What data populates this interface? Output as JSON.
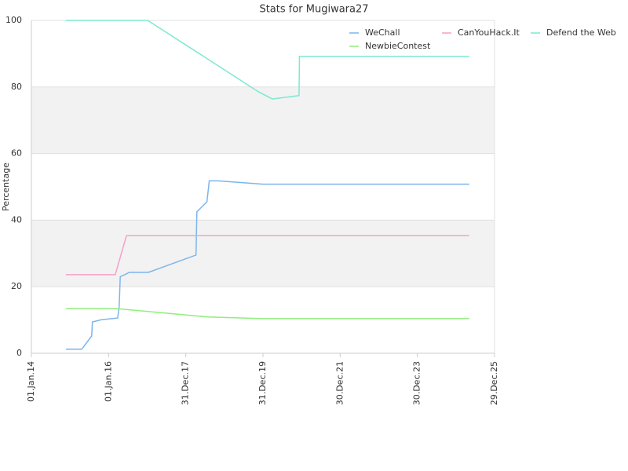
{
  "chart_data": {
    "type": "line",
    "title": "Stats for Mugiwara27",
    "y_label": "Percentage",
    "xlim": [
      "2014-01-01",
      "2025-12-29"
    ],
    "xticks": [
      {
        "value": "2014-01-01",
        "label": "01.Jan.14"
      },
      {
        "value": "2016-01-01",
        "label": "01.Jan.16"
      },
      {
        "value": "2017-12-31",
        "label": "31.Dec.17"
      },
      {
        "value": "2019-12-31",
        "label": "31.Dec.19"
      },
      {
        "value": "2021-12-30",
        "label": "30.Dec.21"
      },
      {
        "value": "2023-12-30",
        "label": "30.Dec.23"
      },
      {
        "value": "2025-12-29",
        "label": "29.Dec.25"
      }
    ],
    "ylim": [
      0,
      100
    ],
    "yticks": [
      0,
      20,
      40,
      60,
      80,
      100
    ],
    "grid": true,
    "legend": "top-right",
    "series": [
      {
        "name": "WeChall",
        "color": "#7cb5ec",
        "x": [
          "2014-11-23",
          "2015-04-22",
          "2015-07-25",
          "2015-08-01",
          "2015-10-30",
          "2016-03-27",
          "2016-04-10",
          "2016-04-20",
          "2016-06-01",
          "2016-07-15",
          "2017-01-11",
          "2018-04-07",
          "2018-04-15",
          "2018-07-19",
          "2018-08-10",
          "2018-11-01",
          "2019-12-31",
          "2025-05-03"
        ],
        "values": [
          1.2,
          1.2,
          5.2,
          9.4,
          10.1,
          10.6,
          14,
          23,
          23.6,
          24.3,
          24.3,
          29.5,
          42.5,
          45.5,
          51.8,
          51.8,
          50.8,
          50.8
        ]
      },
      {
        "name": "CanYouHack.It",
        "color": "#f4a0c8",
        "x": [
          "2014-11-23",
          "2016-03-04",
          "2016-06-18",
          "2025-05-03"
        ],
        "values": [
          23.6,
          23.6,
          35.3,
          35.3
        ]
      },
      {
        "name": "Defend the Web",
        "color": "#7ee8d0",
        "x": [
          "2014-11-23",
          "2017-01-05",
          "2019-11-22",
          "2020-03-29",
          "2020-12-06",
          "2020-12-10",
          "2025-05-03"
        ],
        "values": [
          100,
          100,
          78.5,
          76.4,
          77.4,
          89.2,
          89.2
        ]
      },
      {
        "name": "NewbieContest",
        "color": "#90ed7d",
        "x": [
          "2014-11-23",
          "2016-03-27",
          "2018-07-27",
          "2019-12-31",
          "2025-05-03"
        ],
        "values": [
          13.4,
          13.4,
          10.9,
          10.4,
          10.4
        ]
      }
    ]
  }
}
